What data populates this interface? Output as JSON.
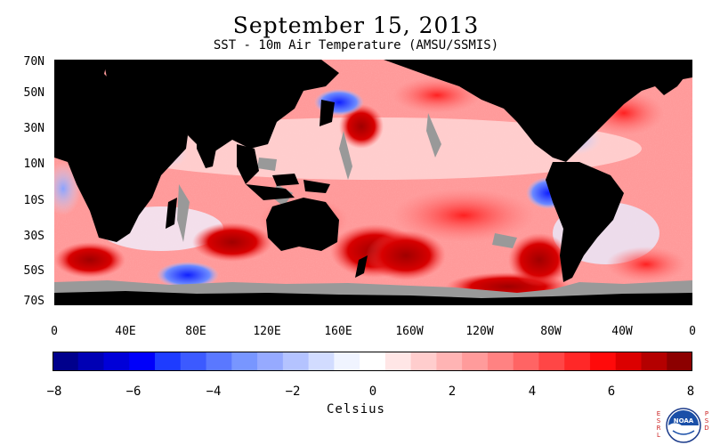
{
  "title": "September 15, 2013",
  "subtitle": "SST - 10m Air Temperature (AMSU/SSMIS)",
  "lat_labels": [
    "70N",
    "50N",
    "30N",
    "10N",
    "10S",
    "30S",
    "50S",
    "70S"
  ],
  "lon_labels": [
    "0",
    "40E",
    "80E",
    "120E",
    "160E",
    "160W",
    "120W",
    "80W",
    "40W",
    "0"
  ],
  "colorbar": {
    "tick_labels": [
      "−8",
      "−6",
      "−4",
      "−2",
      "0",
      "2",
      "4",
      "6",
      "8"
    ],
    "units": "Celsius",
    "range": [
      -8,
      8
    ],
    "colors": [
      "#00008c",
      "#0000b4",
      "#0000d8",
      "#0000fa",
      "#1e3cff",
      "#3c5aff",
      "#5a78ff",
      "#7896ff",
      "#96aaff",
      "#b4c3ff",
      "#d2dcff",
      "#f0f4ff",
      "#ffffff",
      "#ffe6e6",
      "#ffcdcd",
      "#ffb4b4",
      "#ff9b9b",
      "#ff8282",
      "#ff6464",
      "#ff4646",
      "#ff2828",
      "#ff0a0a",
      "#dc0000",
      "#b40000",
      "#8c0000"
    ]
  },
  "map_colors": {
    "land": "#000000",
    "ice_missing": "#999999"
  },
  "logo": {
    "left_text": "ESRL",
    "right_text": "PSD",
    "center_text": "NOAA"
  }
}
